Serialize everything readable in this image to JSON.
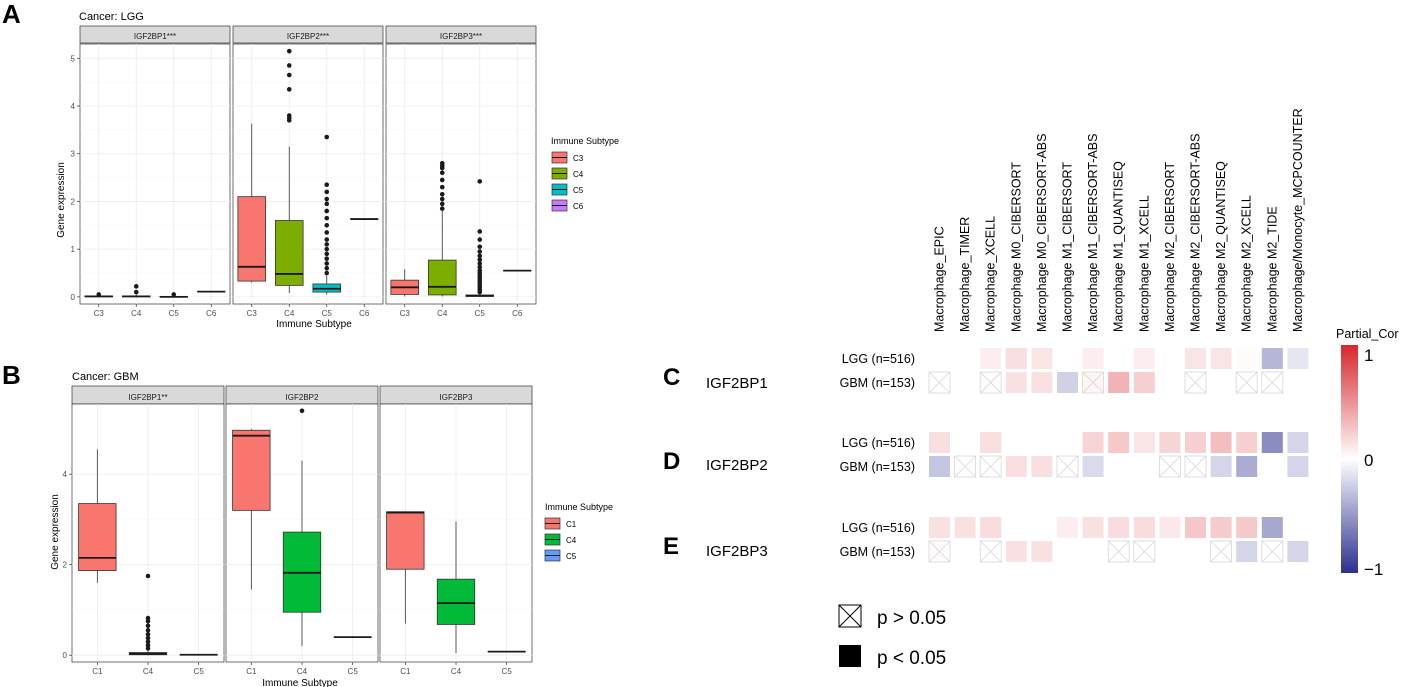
{
  "panels": {
    "A": {
      "letter": "A",
      "cancer_title": "Cancer: LGG",
      "xlabel": "Immune Subtype",
      "ylabel": "Gene expression",
      "ylim": [
        -0.15,
        5.3
      ],
      "yticks": [
        0,
        1,
        2,
        3,
        4,
        5
      ],
      "categories": [
        "C3",
        "C4",
        "C5",
        "C6"
      ],
      "legend_title": "Immune Subtype",
      "legend": [
        {
          "label": "C3",
          "color": "#F8766D"
        },
        {
          "label": "C4",
          "color": "#7CAE00"
        },
        {
          "label": "C5",
          "color": "#00BFC4"
        },
        {
          "label": "C6",
          "color": "#C77CFF"
        }
      ],
      "facets": [
        {
          "title": "IGF2BP1***",
          "boxes": [
            {
              "cat": "C3",
              "min": 0,
              "q1": 0,
              "med": 0.01,
              "q3": 0.02,
              "max": 0.04,
              "outliers": [
                0.05
              ]
            },
            {
              "cat": "C4",
              "min": 0,
              "q1": 0,
              "med": 0.01,
              "q3": 0.02,
              "max": 0.05,
              "outliers": [
                0.1,
                0.22
              ]
            },
            {
              "cat": "C5",
              "min": 0,
              "q1": 0,
              "med": 0.0,
              "q3": 0.01,
              "max": 0.03,
              "outliers": [
                0.05
              ]
            },
            {
              "cat": "C6",
              "min": 0.11,
              "q1": 0.11,
              "med": 0.11,
              "q3": 0.11,
              "max": 0.11,
              "outliers": []
            }
          ]
        },
        {
          "title": "IGF2BP2***",
          "boxes": [
            {
              "cat": "C3",
              "min": 0.3,
              "q1": 0.33,
              "med": 0.63,
              "q3": 2.1,
              "max": 3.63,
              "outliers": []
            },
            {
              "cat": "C4",
              "min": 0.08,
              "q1": 0.24,
              "med": 0.48,
              "q3": 1.6,
              "max": 3.15,
              "outliers": [
                3.7,
                3.75,
                3.8,
                4.35,
                4.65,
                4.85,
                5.15
              ]
            },
            {
              "cat": "C5",
              "min": 0.05,
              "q1": 0.1,
              "med": 0.17,
              "q3": 0.27,
              "max": 0.45,
              "outliers": [
                0.5,
                0.6,
                0.7,
                0.8,
                0.9,
                1.0,
                1.1,
                1.2,
                1.35,
                1.5,
                1.65,
                1.8,
                1.95,
                2.05,
                2.2,
                2.35,
                3.35
              ]
            },
            {
              "cat": "C6",
              "min": 1.63,
              "q1": 1.63,
              "med": 1.63,
              "q3": 1.63,
              "max": 1.63,
              "outliers": []
            }
          ]
        },
        {
          "title": "IGF2BP3***",
          "boxes": [
            {
              "cat": "C3",
              "min": 0.01,
              "q1": 0.05,
              "med": 0.2,
              "q3": 0.35,
              "max": 0.58,
              "outliers": []
            },
            {
              "cat": "C4",
              "min": 0.01,
              "q1": 0.04,
              "med": 0.21,
              "q3": 0.77,
              "max": 1.8,
              "outliers": [
                1.85,
                1.95,
                2.05,
                2.15,
                2.3,
                2.45,
                2.6,
                2.7,
                2.75,
                2.8
              ]
            },
            {
              "cat": "C5",
              "min": 0,
              "q1": 0.01,
              "med": 0.02,
              "q3": 0.04,
              "max": 0.08,
              "outliers": [
                0.1,
                0.15,
                0.2,
                0.25,
                0.3,
                0.35,
                0.4,
                0.45,
                0.5,
                0.55,
                0.62,
                0.7,
                0.78,
                0.86,
                0.95,
                1.05,
                1.2,
                1.37,
                2.42
              ]
            },
            {
              "cat": "C6",
              "min": 0.55,
              "q1": 0.55,
              "med": 0.55,
              "q3": 0.55,
              "max": 0.55,
              "outliers": []
            }
          ]
        }
      ]
    },
    "B": {
      "letter": "B",
      "cancer_title": "Cancer: GBM",
      "xlabel": "Immune Subtype",
      "ylabel": "Gene expression",
      "ylim": [
        -0.15,
        5.55
      ],
      "yticks": [
        0,
        2,
        4
      ],
      "categories": [
        "C1",
        "C4",
        "C5"
      ],
      "legend_title": "Immune Subtype",
      "legend": [
        {
          "label": "C1",
          "color": "#F8766D"
        },
        {
          "label": "C4",
          "color": "#00BA38"
        },
        {
          "label": "C5",
          "color": "#619CFF"
        }
      ],
      "facets": [
        {
          "title": "IGF2BP1**",
          "boxes": [
            {
              "cat": "C1",
              "min": 1.6,
              "q1": 1.87,
              "med": 2.15,
              "q3": 3.35,
              "max": 4.55,
              "outliers": []
            },
            {
              "cat": "C4",
              "min": 0,
              "q1": 0.01,
              "med": 0.03,
              "q3": 0.06,
              "max": 0.1,
              "outliers": [
                0.15,
                0.22,
                0.3,
                0.38,
                0.46,
                0.55,
                0.65,
                0.75,
                0.82,
                1.75
              ]
            },
            {
              "cat": "C5",
              "min": 0.01,
              "q1": 0.01,
              "med": 0.01,
              "q3": 0.01,
              "max": 0.01,
              "outliers": []
            }
          ]
        },
        {
          "title": "IGF2BP2",
          "boxes": [
            {
              "cat": "C1",
              "min": 1.45,
              "q1": 3.2,
              "med": 4.85,
              "q3": 4.97,
              "max": 5.0,
              "outliers": []
            },
            {
              "cat": "C4",
              "min": 0.2,
              "q1": 0.95,
              "med": 1.82,
              "q3": 2.72,
              "max": 4.3,
              "outliers": [
                5.4
              ]
            },
            {
              "cat": "C5",
              "min": 0.4,
              "q1": 0.4,
              "med": 0.4,
              "q3": 0.4,
              "max": 0.4,
              "outliers": []
            }
          ]
        },
        {
          "title": "IGF2BP3",
          "boxes": [
            {
              "cat": "C1",
              "min": 0.7,
              "q1": 1.9,
              "med": 3.15,
              "q3": 3.17,
              "max": 3.18,
              "outliers": []
            },
            {
              "cat": "C4",
              "min": 0.05,
              "q1": 0.68,
              "med": 1.15,
              "q3": 1.68,
              "max": 2.95,
              "outliers": []
            },
            {
              "cat": "C5",
              "min": 0.08,
              "q1": 0.08,
              "med": 0.08,
              "q3": 0.08,
              "max": 0.08,
              "outliers": []
            }
          ]
        }
      ]
    }
  },
  "chart_data": [
    {
      "type": "box",
      "title": "Cancer: LGG",
      "xlabel": "Immune Subtype",
      "ylabel": "Gene expression",
      "categories": [
        "C3",
        "C4",
        "C5",
        "C6"
      ],
      "facets": [
        "IGF2BP1***",
        "IGF2BP2***",
        "IGF2BP3***"
      ],
      "ylim": [
        -0.15,
        5.3
      ]
    },
    {
      "type": "box",
      "title": "Cancer: GBM",
      "xlabel": "Immune Subtype",
      "ylabel": "Gene expression",
      "categories": [
        "C1",
        "C4",
        "C5"
      ],
      "facets": [
        "IGF2BP1**",
        "IGF2BP2",
        "IGF2BP3"
      ],
      "ylim": [
        -0.15,
        5.55
      ]
    },
    {
      "type": "heatmap",
      "title": "Partial_Cor",
      "columns": [
        "Macrophage_EPIC",
        "Macrophage_TIMER",
        "Macrophage_XCELL",
        "Macrophage M0_CIBERSORT",
        "Macrophage M0_CIBERSORT-ABS",
        "Macrophage M1_CIBERSORT",
        "Macrophage M1_CIBERSORT-ABS",
        "Macrophage M1_QUANTISEQ",
        "Macrophage M1_XCELL",
        "Macrophage M2_CIBERSORT",
        "Macrophage M2_CIBERSORT-ABS",
        "Macrophage M2_QUANTISEQ",
        "Macrophage M2_XCELL",
        "Macrophage M2_TIDE",
        "Macrophage/Monocyte_MCPCOUNTER"
      ],
      "colorbar": {
        "min": -1,
        "max": 1,
        "ticks": [
          "1",
          "0",
          "−1"
        ],
        "low": "#2c2f8f",
        "mid": "#ffffff",
        "high": "#d7262c"
      }
    }
  ],
  "heatmap": {
    "legend_title": "Partial_Cor",
    "colorbar_labels": {
      "top": "1",
      "mid": "0",
      "bottom": "−1"
    },
    "columns": [
      "Macrophage_EPIC",
      "Macrophage_TIMER",
      "Macrophage_XCELL",
      "Macrophage M0_CIBERSORT",
      "Macrophage M0_CIBERSORT-ABS",
      "Macrophage M1_CIBERSORT",
      "Macrophage M1_CIBERSORT-ABS",
      "Macrophage M1_QUANTISEQ",
      "Macrophage M1_XCELL",
      "Macrophage M2_CIBERSORT",
      "Macrophage M2_CIBERSORT-ABS",
      "Macrophage M2_QUANTISEQ",
      "Macrophage M2_XCELL",
      "Macrophage M2_TIDE",
      "Macrophage/Monocyte_MCPCOUNTER"
    ],
    "groups": [
      {
        "letter": "C",
        "gene": "IGF2BP1",
        "rows": [
          {
            "label": "LGG (n=516)",
            "values": [
              0.0,
              0.0,
              0.08,
              0.15,
              0.12,
              0.0,
              0.08,
              0.0,
              0.08,
              0.0,
              0.12,
              0.12,
              0.02,
              -0.35,
              -0.12
            ],
            "ns": [
              false,
              false,
              false,
              false,
              false,
              false,
              false,
              false,
              false,
              false,
              false,
              false,
              false,
              false,
              false
            ]
          },
          {
            "label": "GBM (n=153)",
            "values": [
              0.0,
              0.0,
              0.02,
              0.14,
              0.14,
              -0.22,
              0.05,
              0.35,
              0.22,
              0.0,
              0.0,
              0.0,
              0.0,
              0.0,
              0.0
            ],
            "ns": [
              true,
              false,
              true,
              false,
              false,
              false,
              true,
              false,
              false,
              false,
              true,
              false,
              true,
              true,
              false
            ]
          }
        ]
      },
      {
        "letter": "D",
        "gene": "IGF2BP2",
        "rows": [
          {
            "label": "LGG (n=516)",
            "values": [
              0.15,
              0.0,
              0.15,
              0.0,
              0.0,
              0.0,
              0.2,
              0.25,
              0.12,
              0.2,
              0.22,
              0.3,
              0.22,
              -0.55,
              -0.2
            ],
            "ns": [
              false,
              false,
              false,
              false,
              false,
              false,
              false,
              false,
              false,
              false,
              false,
              false,
              false,
              false,
              false
            ]
          },
          {
            "label": "GBM (n=153)",
            "values": [
              -0.28,
              0.0,
              0.0,
              0.15,
              0.15,
              0.0,
              -0.18,
              0.0,
              0.0,
              0.0,
              0.0,
              -0.2,
              -0.4,
              0.0,
              -0.2
            ],
            "ns": [
              false,
              true,
              true,
              false,
              false,
              true,
              false,
              false,
              false,
              true,
              true,
              false,
              false,
              false,
              false
            ]
          }
        ]
      },
      {
        "letter": "E",
        "gene": "IGF2BP3",
        "rows": [
          {
            "label": "LGG (n=516)",
            "values": [
              0.14,
              0.14,
              0.16,
              0.0,
              0.0,
              0.08,
              0.14,
              0.16,
              0.16,
              0.1,
              0.26,
              0.24,
              0.25,
              -0.42,
              0.0
            ],
            "ns": [
              false,
              false,
              false,
              false,
              false,
              false,
              false,
              false,
              false,
              false,
              false,
              false,
              false,
              false,
              false
            ]
          },
          {
            "label": "GBM (n=153)",
            "values": [
              0.02,
              0.0,
              0.0,
              0.14,
              0.14,
              0.0,
              0.0,
              0.0,
              0.0,
              0.0,
              0.0,
              0.0,
              -0.2,
              0.0,
              -0.2
            ],
            "ns": [
              true,
              false,
              true,
              false,
              false,
              false,
              false,
              true,
              true,
              false,
              false,
              true,
              false,
              true,
              false
            ]
          }
        ]
      }
    ]
  },
  "key": {
    "ns_label": "p > 0.05",
    "sig_label": "p < 0.05"
  }
}
